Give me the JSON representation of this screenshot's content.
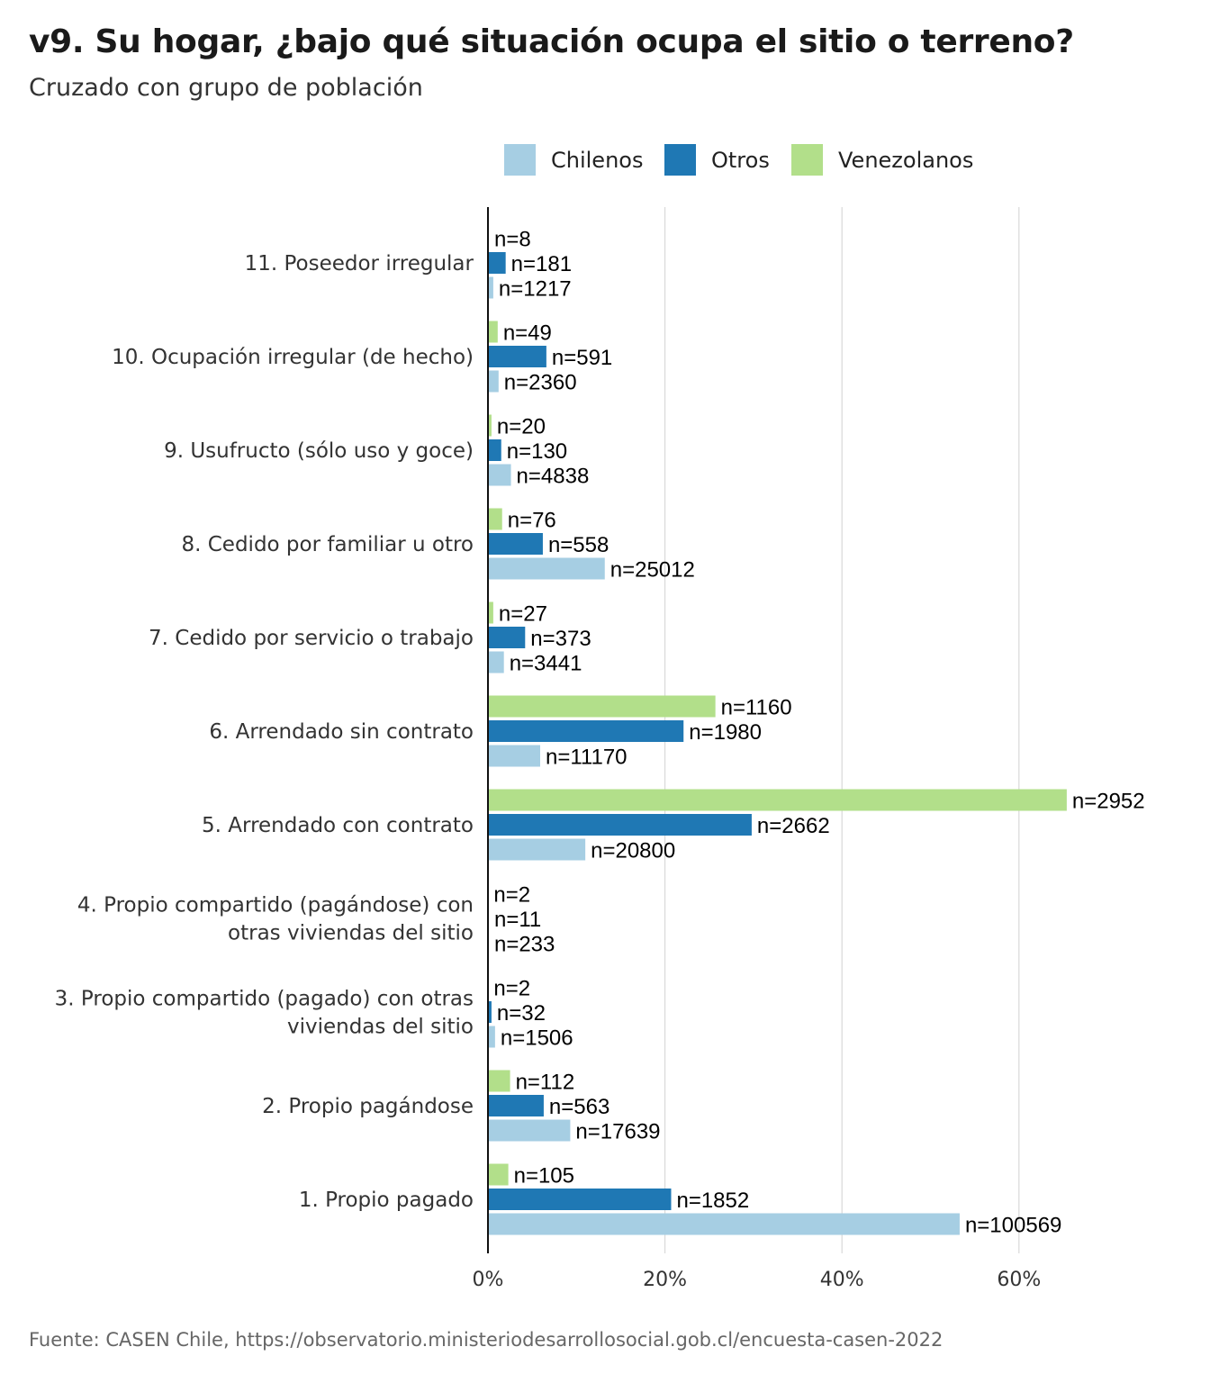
{
  "title": "v9. Su hogar, ¿bajo qué situación ocupa el sitio o terreno?",
  "subtitle": "Cruzado con grupo de población",
  "caption": "Fuente: CASEN Chile, https://observatorio.ministeriodesarrollosocial.gob.cl/encuesta-casen-2022",
  "colors": {
    "Chilenos": "#a6cee3",
    "Otros": "#1f78b4",
    "Venezolanos": "#b2df8a"
  },
  "chart_data": {
    "type": "bar",
    "orientation": "horizontal",
    "title": "v9. Su hogar, ¿bajo qué situación ocupa el sitio o terreno?",
    "subtitle": "Cruzado con grupo de población",
    "xlim": [
      0,
      70
    ],
    "x_ticks": [
      "0%",
      "20%",
      "40%",
      "60%"
    ],
    "x_tick_values": [
      0,
      20,
      40,
      60
    ],
    "grid": true,
    "legend_position": "top",
    "legend": [
      "Chilenos",
      "Otros",
      "Venezolanos"
    ],
    "categories": [
      "11. Poseedor irregular",
      "10. Ocupación irregular (de hecho)",
      "9. Usufructo (sólo uso y goce)",
      "8. Cedido por familiar u otro",
      "7. Cedido por servicio o trabajo",
      "6. Arrendado sin contrato",
      "5. Arrendado con contrato",
      "4. Propio compartido (pagándose) con otras viviendas del sitio",
      "3. Propio compartido (pagado) con otras viviendas del sitio",
      "2. Propio pagándose",
      "1. Propio pagado"
    ],
    "series": [
      {
        "name": "Venezolanos",
        "values": [
          0.1,
          1.1,
          0.4,
          1.6,
          0.6,
          25.7,
          65.4,
          0.04,
          0.04,
          2.5,
          2.3
        ],
        "labels": [
          "n=8",
          "n=49",
          "n=20",
          "n=76",
          "n=27",
          "n=1160",
          "n=2952",
          "n=2",
          "n=2",
          "n=112",
          "n=105"
        ]
      },
      {
        "name": "Otros",
        "values": [
          2.0,
          6.6,
          1.5,
          6.2,
          4.2,
          22.1,
          29.8,
          0.1,
          0.4,
          6.3,
          20.7
        ],
        "labels": [
          "n=181",
          "n=591",
          "n=130",
          "n=558",
          "n=373",
          "n=1980",
          "n=2662",
          "n=11",
          "n=32",
          "n=563",
          "n=1852"
        ]
      },
      {
        "name": "Chilenos",
        "values": [
          0.6,
          1.2,
          2.6,
          13.2,
          1.8,
          5.9,
          11.0,
          0.1,
          0.8,
          9.3,
          53.3
        ],
        "labels": [
          "n=1217",
          "n=2360",
          "n=4838",
          "n=25012",
          "n=3441",
          "n=11170",
          "n=20800",
          "n=233",
          "n=1506",
          "n=17639",
          "n=100569"
        ]
      }
    ]
  }
}
